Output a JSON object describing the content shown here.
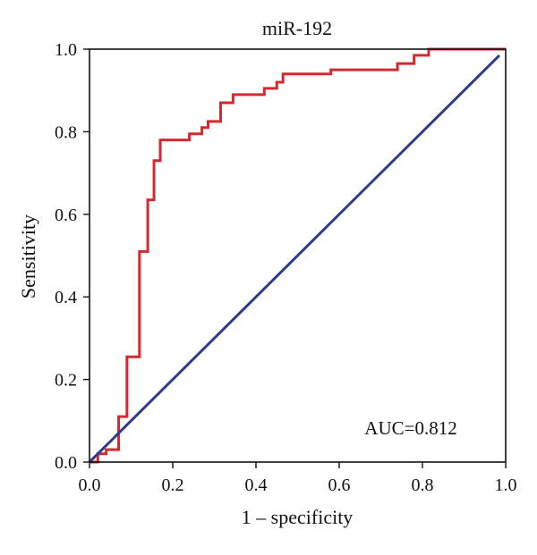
{
  "chart_data": {
    "type": "line",
    "title": "miR-192",
    "xlabel": "1 – specificity",
    "ylabel": "Sensitivity",
    "xlim": [
      0,
      1
    ],
    "ylim": [
      0,
      1
    ],
    "x_ticks": [
      "0.0",
      "0.2",
      "0.4",
      "0.6",
      "0.8",
      "1.0"
    ],
    "y_ticks": [
      "0.0",
      "0.2",
      "0.4",
      "0.6",
      "0.8",
      "1.0"
    ],
    "grid": false,
    "annotation": "AUC=0.812",
    "series": [
      {
        "color": "#d42a2f",
        "x": [
          0.0,
          0.02,
          0.02,
          0.04,
          0.04,
          0.07,
          0.07,
          0.09,
          0.09,
          0.12,
          0.12,
          0.14,
          0.14,
          0.155,
          0.155,
          0.17,
          0.17,
          0.24,
          0.24,
          0.27,
          0.27,
          0.285,
          0.285,
          0.315,
          0.315,
          0.345,
          0.345,
          0.42,
          0.42,
          0.45,
          0.45,
          0.465,
          0.465,
          0.58,
          0.58,
          0.74,
          0.74,
          0.78,
          0.78,
          0.815,
          0.815,
          1.0
        ],
        "y": [
          0.0,
          0.0,
          0.02,
          0.02,
          0.03,
          0.03,
          0.11,
          0.11,
          0.255,
          0.255,
          0.51,
          0.51,
          0.635,
          0.635,
          0.73,
          0.73,
          0.78,
          0.78,
          0.795,
          0.795,
          0.81,
          0.81,
          0.825,
          0.825,
          0.87,
          0.87,
          0.89,
          0.89,
          0.905,
          0.905,
          0.92,
          0.92,
          0.94,
          0.94,
          0.95,
          0.95,
          0.965,
          0.965,
          0.985,
          0.985,
          1.0,
          1.0
        ]
      },
      {
        "color": "#2e3a8c",
        "x": [
          0.0,
          0.985
        ],
        "y": [
          0.0,
          0.985
        ]
      }
    ]
  },
  "colors": {
    "roc_curve": "#d42a2f",
    "reference_line": "#2e3a8c",
    "axis": "#111111"
  }
}
